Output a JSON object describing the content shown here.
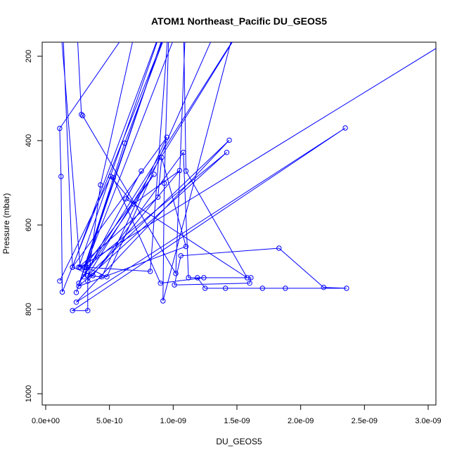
{
  "chart_data": {
    "type": "line",
    "title": "ATOM1 Northeast_Pacific DU_GEOS5",
    "xlabel": "DU_GEOS5",
    "ylabel": "Pressure (mbar)",
    "xlim": [
      0,
      3e-09
    ],
    "ylim": [
      1000,
      200
    ],
    "y_reversed": true,
    "x_ticks": [
      "0.0e+00",
      "5.0e-10",
      "1.0e-09",
      "1.5e-09",
      "2.0e-09",
      "2.5e-09",
      "3.0e-09"
    ],
    "x_tick_values": [
      0,
      5e-10,
      1e-09,
      1.5e-09,
      2e-09,
      2.5e-09,
      3e-09
    ],
    "y_ticks": [
      "200",
      "400",
      "600",
      "800",
      "1000"
    ],
    "y_tick_values": [
      200,
      400,
      600,
      800,
      1000
    ],
    "grid": false,
    "color": "#0000ff",
    "series": [
      {
        "points": [
          [
            1.1e-10,
            733
          ],
          [
            5.1e-10,
            485
          ],
          [
            6.9e-10,
            550
          ],
          [
            1.05e-09,
            471
          ],
          [
            3.3e-10,
            733
          ],
          [
            4.3e-10,
            505
          ],
          [
            7.3e-10,
            100
          ],
          [
            1.1e-10,
            371
          ],
          [
            1.2e-10,
            485
          ],
          [
            1.3e-10,
            759
          ],
          [
            1e-09,
            100
          ],
          [
            6.2e-10,
            406
          ],
          [
            2.4e-10,
            760
          ],
          [
            9.8e-10,
            100
          ],
          [
            3e-10,
            701
          ],
          [
            8.5e-10,
            480
          ],
          [
            2.6e-10,
            738
          ],
          [
            1.6e-09,
            100
          ],
          [
            3.3e-10,
            720
          ],
          [
            1.44e-09,
            399
          ],
          [
            2.4e-10,
            783
          ],
          [
            2.35e-09,
            370
          ],
          [
            2.1e-10,
            803
          ],
          [
            3.3e-10,
            803
          ],
          [
            3.3e-10,
            720
          ],
          [
            4.4e-10,
            723
          ],
          [
            9.5e-10,
            392
          ],
          [
            2.1e-10,
            700
          ],
          [
            9.5e-10,
            100
          ],
          [
            2.6e-10,
            700
          ],
          [
            8.8e-10,
            534
          ],
          [
            9.1e-10,
            440
          ],
          [
            1.1e-09,
            651
          ],
          [
            2.6e-10,
            745
          ],
          [
            1.42e-09,
            428
          ],
          [
            3.2e-10,
            700
          ],
          [
            4.8e-10,
            723
          ],
          [
            1.39e-09,
            100
          ],
          [
            1.51e-09,
            100
          ],
          [
            9.2e-10,
            780
          ],
          [
            9.3e-10,
            501
          ],
          [
            9.7e-10,
            100
          ],
          [
            8.2e-10,
            710
          ],
          [
            3.1e-10,
            700
          ],
          [
            1.08e-09,
            100
          ],
          [
            1.1e-09,
            472
          ],
          [
            1.58e-09,
            725
          ],
          [
            6.3e-10,
            538
          ],
          [
            7.5e-10,
            472
          ],
          [
            3e-10,
            723
          ],
          [
            5.3e-10,
            488
          ],
          [
            9e-10,
            738
          ],
          [
            1.24e-09,
            725
          ],
          [
            1.19e-09,
            725
          ],
          [
            1.25e-09,
            750
          ],
          [
            1.41e-09,
            750
          ],
          [
            1.7e-09,
            750
          ],
          [
            1.88e-09,
            750
          ],
          [
            2.36e-09,
            750
          ],
          [
            2.18e-09,
            748
          ],
          [
            1.83e-09,
            655
          ],
          [
            1.06e-09,
            673
          ],
          [
            1.01e-09,
            742
          ],
          [
            1.6e-09,
            738
          ],
          [
            1.61e-09,
            725
          ],
          [
            1.12e-09,
            725
          ],
          [
            1.08e-09,
            428
          ],
          [
            3.7e-10,
            720
          ],
          [
            2.1e-10,
            700
          ],
          [
            1.3e-10,
            100
          ],
          [
            1.5e-10,
            150
          ],
          [
            2.4e-10,
            100
          ],
          [
            2.8e-10,
            338
          ],
          [
            2.9e-10,
            341
          ],
          [
            1.02e-09,
            715
          ],
          [
            1.1e-09,
            100
          ],
          [
            1.1e-10,
            100
          ],
          [
            2.7e-10,
            700
          ],
          [
            3.5e-09,
            100
          ]
        ]
      }
    ]
  }
}
